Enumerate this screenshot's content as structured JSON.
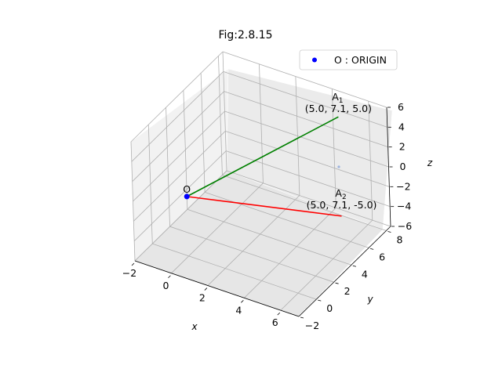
{
  "chart_data": {
    "type": "line3d",
    "title": "Fig:2.8.15",
    "xlabel": "x",
    "ylabel": "y",
    "zlabel": "z",
    "xlim": [
      -2,
      7
    ],
    "ylim": [
      -2,
      8.5
    ],
    "zlim": [
      -6,
      6
    ],
    "xticks": [
      "−2",
      "0",
      "2",
      "4",
      "6"
    ],
    "yticks": [
      "−2",
      "0",
      "2",
      "4",
      "6",
      "8"
    ],
    "zticks": [
      "−6",
      "−4",
      "−2",
      "0",
      "2",
      "4",
      "6"
    ],
    "grid": true,
    "legend_position": "top-right",
    "legend": [
      {
        "label": "O : ORIGIN",
        "color": "#0000ff",
        "marker": "circle"
      }
    ],
    "origin": {
      "label": "O",
      "x": 0,
      "y": 0,
      "z": 0,
      "color": "#0000ff"
    },
    "segments": [
      {
        "name": "A1",
        "sub": "1",
        "coord_label": "(5.0, 7.1, 5.0)",
        "from": [
          0,
          0,
          0
        ],
        "to": [
          5.0,
          7.1,
          5.0
        ],
        "color": "#008000"
      },
      {
        "name": "A2",
        "sub": "2",
        "coord_label": "(5.0, 7.1, -5.0)",
        "from": [
          0,
          0,
          0
        ],
        "to": [
          5.0,
          7.1,
          -5.0
        ],
        "color": "#ff0000"
      }
    ]
  }
}
